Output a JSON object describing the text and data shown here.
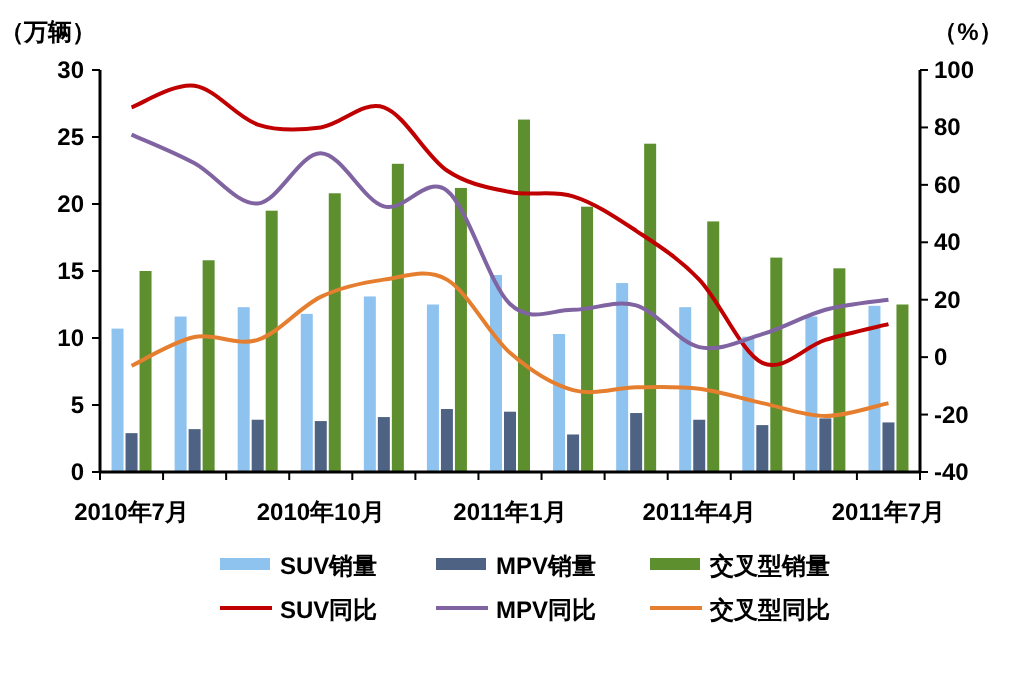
{
  "chart_data": {
    "type": "bar",
    "ylabel": "（万辆）",
    "y2label": "（%）",
    "categories": [
      "2010年7月",
      null,
      null,
      "2010年10月",
      null,
      null,
      "2011年1月",
      null,
      null,
      "2011年4月",
      null,
      null,
      "2011年7月"
    ],
    "ylim": [
      0,
      30
    ],
    "yticks": [
      0,
      5,
      10,
      15,
      20,
      25,
      30
    ],
    "y2lim": [
      -40,
      100
    ],
    "y2ticks": [
      -40,
      -20,
      0,
      20,
      40,
      60,
      80,
      100
    ],
    "legend": "bottom",
    "grid": false,
    "series": [
      {
        "name": "SUV销量",
        "color": "#8fc3ef",
        "values": [
          10.7,
          11.6,
          12.3,
          11.8,
          13.1,
          12.5,
          14.7,
          10.3,
          14.1,
          12.3,
          10.1,
          11.6,
          12.4
        ]
      },
      {
        "name": "MPV销量",
        "color": "#4e6384",
        "values": [
          2.9,
          3.2,
          3.9,
          3.8,
          4.1,
          4.7,
          4.5,
          2.8,
          4.4,
          3.9,
          3.5,
          4.0,
          3.7
        ]
      },
      {
        "name": "交叉型销量",
        "color": "#5d8f2f",
        "values": [
          15.0,
          15.8,
          19.5,
          20.8,
          23.0,
          21.2,
          26.3,
          19.8,
          24.5,
          18.7,
          16.0,
          15.2,
          12.5
        ]
      },
      {
        "name": "SUV同比",
        "type": "line",
        "axis": "y2",
        "color": "#c00000",
        "values": [
          87,
          94.5,
          81,
          80,
          87,
          65,
          57.5,
          56,
          44,
          27,
          -2,
          6,
          11.5
        ]
      },
      {
        "name": "MPV同比",
        "type": "line",
        "axis": "y2",
        "color": "#8064a2",
        "values": [
          77.5,
          67.5,
          53.5,
          71,
          52.5,
          58,
          18.5,
          16.5,
          18,
          3.5,
          8,
          16.5,
          20
        ]
      },
      {
        "name": "交叉型同比",
        "type": "line",
        "axis": "y2",
        "color": "#e57f2f",
        "values": [
          -3,
          7,
          6,
          21,
          27,
          27,
          1.5,
          -11.5,
          -10.5,
          -11,
          -16,
          -20.5,
          -16
        ]
      }
    ]
  }
}
